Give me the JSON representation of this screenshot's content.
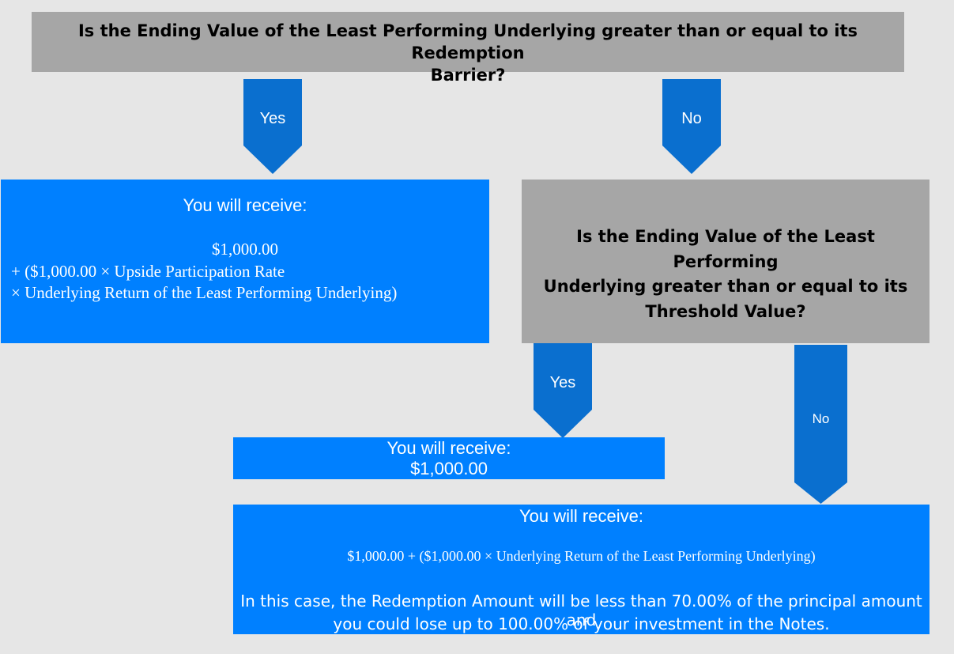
{
  "question1": {
    "line1": "Is the Ending Value of the Least Performing Underlying greater than or equal to its Redemption",
    "line2": "Barrier?"
  },
  "arrow_yes_1": "Yes",
  "arrow_no_1": "No",
  "outcome1": {
    "heading": "You will receive:",
    "line1": "$1,000.00",
    "line2": "+ ($1,000.00 × Upside Participation Rate",
    "line3": "× Underlying Return of the Least Performing Underlying)"
  },
  "question2": {
    "line1": "Is the Ending Value of the Least Performing",
    "line2": "Underlying greater than or equal to its",
    "line3": "Threshold Value?"
  },
  "arrow_yes_2": "Yes",
  "arrow_no_2": "No",
  "outcome2": {
    "heading": "You will receive:",
    "amount": "$1,000.00"
  },
  "outcome3": {
    "heading": "You will receive:",
    "formula": "$1,000.00 + ($1,000.00 × Underlying Return of the Least Performing Underlying)",
    "note_line1": "In this case, the Redemption Amount will be less than 70.00% of the principal amount and",
    "note_line2": "you could lose up to 100.00% of your investment in the Notes."
  },
  "colors": {
    "background": "#e6e6e6",
    "question_box": "#a6a6a6",
    "outcome_box": "#0080ff",
    "arrow": "#0a6fcf"
  }
}
